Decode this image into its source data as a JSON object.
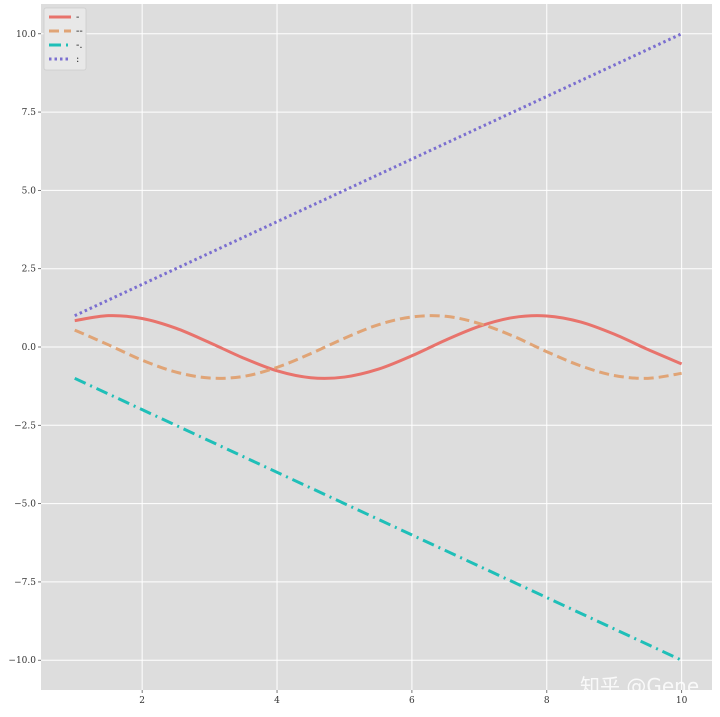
{
  "chart_data": {
    "type": "line",
    "xlim": [
      0.5,
      10.45
    ],
    "ylim": [
      -10.95,
      10.95
    ],
    "xticks": [
      2,
      4,
      6,
      8,
      10
    ],
    "xtick_labels": [
      "2",
      "4",
      "6",
      "8",
      "10"
    ],
    "yticks": [
      10.0,
      7.5,
      5.0,
      2.5,
      0.0,
      -2.5,
      -5.0,
      -7.5,
      -10.0
    ],
    "ytick_labels": [
      "10.0",
      "7.5",
      "5.0",
      "2.5",
      "0.0",
      "−2.5",
      "−5.0",
      "−7.5",
      "−10.0"
    ],
    "grid": true,
    "legend_position": "top-left",
    "background": "#dddddd",
    "series": [
      {
        "name": "-",
        "color": "#e8736c",
        "linestyle": "solid",
        "x": [
          1.0,
          1.5,
          2.0,
          2.5,
          3.0,
          3.5,
          4.0,
          4.5,
          5.0,
          5.5,
          6.0,
          6.5,
          7.0,
          7.5,
          8.0,
          8.5,
          9.0,
          9.5,
          10.0
        ],
        "y": [
          0.84,
          1.0,
          0.91,
          0.6,
          0.14,
          -0.35,
          -0.76,
          -0.98,
          -0.96,
          -0.71,
          -0.28,
          0.22,
          0.66,
          0.94,
          0.99,
          0.8,
          0.41,
          -0.08,
          -0.54
        ]
      },
      {
        "name": "--",
        "color": "#e0a476",
        "linestyle": "dashed",
        "x": [
          1.0,
          1.5,
          2.0,
          2.5,
          3.0,
          3.5,
          4.0,
          4.5,
          5.0,
          5.5,
          6.0,
          6.5,
          7.0,
          7.5,
          8.0,
          8.5,
          9.0,
          9.5,
          10.0
        ],
        "y": [
          0.54,
          0.07,
          -0.42,
          -0.8,
          -0.99,
          -0.94,
          -0.65,
          -0.21,
          0.28,
          0.71,
          0.96,
          0.98,
          0.75,
          0.35,
          -0.15,
          -0.6,
          -0.91,
          -1.0,
          -0.84
        ]
      },
      {
        "name": "-.",
        "color": "#1fbfb8",
        "linestyle": "dashdot",
        "x": [
          1,
          10
        ],
        "y": [
          -1,
          -10
        ]
      },
      {
        "name": ":",
        "color": "#7b6fd0",
        "linestyle": "dotted",
        "x": [
          1,
          10
        ],
        "y": [
          1,
          10
        ]
      }
    ]
  },
  "watermark": {
    "main": "知乎 @Gene",
    "url": "https://blog.csdn.net/qq_"
  }
}
